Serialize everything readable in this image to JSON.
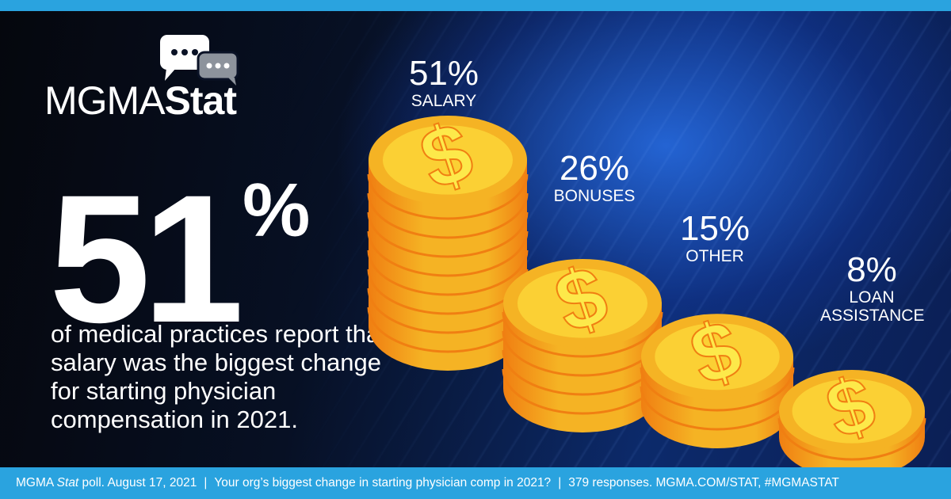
{
  "brand": {
    "logo_thin": "MGMA",
    "logo_bold": "Stat",
    "icon": "speech-bubbles-icon"
  },
  "headline": {
    "value": "51",
    "unit": "%",
    "description": "of medical practices report that salary was the biggest change for starting physician compensation in 2021."
  },
  "chart_data": {
    "type": "bar",
    "style": "stacked coin piles",
    "categories": [
      "SALARY",
      "BONUSES",
      "OTHER",
      "LOAN ASSISTANCE"
    ],
    "values": [
      51,
      26,
      15,
      8
    ],
    "value_labels": [
      "51%",
      "26%",
      "15%",
      "8%"
    ],
    "unit": "%",
    "title": "",
    "xlabel": "",
    "ylabel": ""
  },
  "footer": {
    "source_prefix": "MGMA ",
    "source_italic": "Stat",
    "source_suffix": " poll. August 17, 2021",
    "question": "Your org’s biggest change in starting physician comp in 2021?",
    "responses": "379 responses. MGMA.COM/STAT, #MGMASTAT",
    "separator": "|"
  },
  "colors": {
    "accent": "#2aa3df",
    "coin_gold": "#f5b324",
    "coin_edge": "#f07f12",
    "coin_face": "#fbd034",
    "dollar": "#fde94a",
    "text": "#ffffff"
  }
}
